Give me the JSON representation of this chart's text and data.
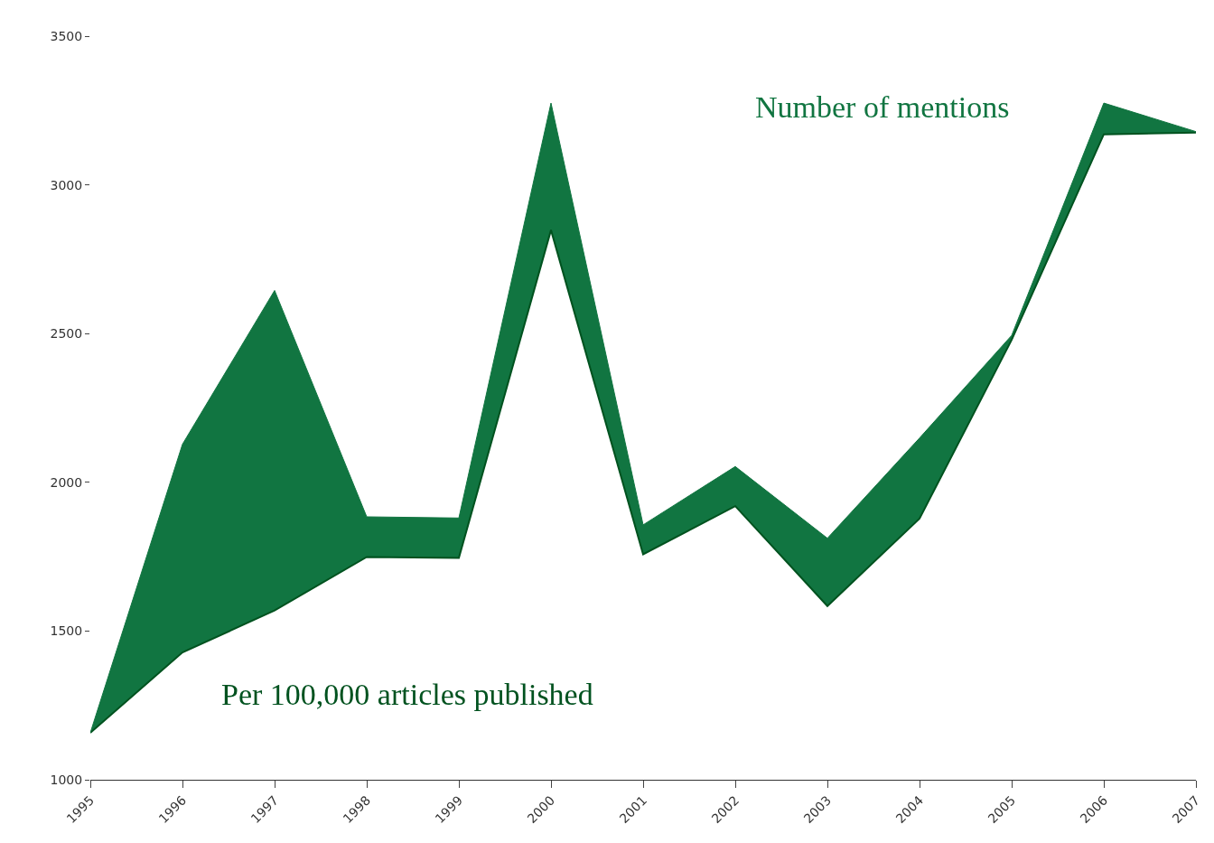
{
  "chart_data": {
    "type": "area",
    "x": [
      1995,
      1996,
      1997,
      1998,
      1999,
      2000,
      2001,
      2002,
      2003,
      2004,
      2005,
      2006,
      2007
    ],
    "series": [
      {
        "name": "Number of mentions",
        "color": "#117541",
        "values": [
          1158,
          2128,
          2645,
          1884,
          1880,
          3275,
          1857,
          2053,
          1812,
          2149,
          2494,
          3275,
          3179
        ]
      },
      {
        "name": "Per 100,000 articles published",
        "type": "line",
        "color": "#00521f",
        "values": [
          1158,
          1428,
          1569,
          1749,
          1746,
          2848,
          1758,
          1920,
          1584,
          1878,
          2479,
          3170,
          3176
        ]
      }
    ],
    "xlim": [
      1995,
      2007
    ],
    "xticks": [
      1995,
      1996,
      1997,
      1998,
      1999,
      2000,
      2001,
      2002,
      2003,
      2004,
      2005,
      2006,
      2007
    ],
    "ylim": [
      1000,
      3500
    ],
    "yticks": [
      1000,
      1500,
      2000,
      2500,
      3000,
      3500
    ],
    "legend": false
  }
}
